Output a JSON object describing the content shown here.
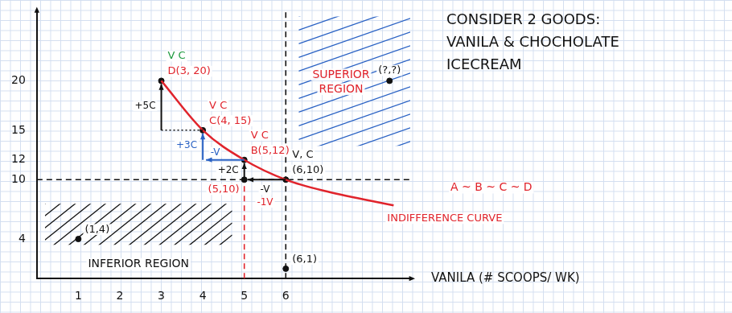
{
  "chart_data": {
    "type": "scatter",
    "title": "CONSIDER 2 GOODS: VANILA & CHOCHOLATE ICECREAM",
    "x_label": "VANILA (# SCOOPS/ WK)",
    "xlim": [
      0,
      9
    ],
    "xticks": [
      1,
      2,
      3,
      4,
      5,
      6
    ],
    "ylim": [
      0,
      27
    ],
    "yticks": [
      4,
      10,
      12,
      15,
      20
    ],
    "grid": false,
    "marker": "circle",
    "series": [
      {
        "name": "INDIFFERENCE CURVE",
        "type": "line",
        "color": "#e0242c",
        "line_style": "solid",
        "x": [
          3,
          4,
          5,
          6,
          7,
          8.6
        ],
        "values": [
          20,
          15,
          12,
          10,
          8.8,
          7.4
        ]
      }
    ],
    "points": [
      {
        "label": "D(3, 20)",
        "x": 3,
        "y": 20,
        "color": "#e0242c",
        "basket": {
          "label": "V C",
          "color": "#1f9a3f"
        }
      },
      {
        "label": "C(4, 15)",
        "x": 4,
        "y": 15,
        "color": "#e0242c",
        "basket": {
          "label": "V C",
          "color": "#e0242c"
        }
      },
      {
        "label": "B(5,12)",
        "x": 5,
        "y": 12,
        "color": "#e0242c",
        "basket": {
          "label": "V C",
          "color": "#e0242c"
        }
      },
      {
        "label": "(6,10)",
        "x": 6,
        "y": 10,
        "color": "#111111",
        "basket": {
          "label": "V, C",
          "color": "#111111"
        }
      },
      {
        "label": "(5,10)",
        "x": 5,
        "y": 10,
        "color": "#e0242c"
      },
      {
        "label": "(1,4)",
        "x": 1,
        "y": 4,
        "color": "#111111"
      },
      {
        "label": "(6,1)",
        "x": 6,
        "y": 1,
        "color": "#111111"
      },
      {
        "label": "(?,?)",
        "x": 8.5,
        "y": 20,
        "color": "#111111"
      }
    ],
    "steps": [
      {
        "from": [
          3,
          15
        ],
        "to": [
          3,
          20
        ],
        "labels": [
          "+5C"
        ],
        "colors": [
          "#111111"
        ]
      },
      {
        "from": [
          4,
          12
        ],
        "to": [
          4,
          15
        ],
        "labels": [
          "+3C"
        ],
        "colors": [
          "#2a62c4"
        ]
      },
      {
        "from": [
          5,
          12
        ],
        "to": [
          4,
          12
        ],
        "labels": [
          "-V"
        ],
        "colors": [
          "#2a62c4"
        ]
      },
      {
        "from": [
          5,
          10
        ],
        "to": [
          5,
          12
        ],
        "labels": [
          "+2C"
        ],
        "colors": [
          "#111111"
        ]
      },
      {
        "from": [
          6,
          10
        ],
        "to": [
          5,
          10
        ],
        "labels": [
          "-V",
          "-1V"
        ],
        "colors": [
          "#111111",
          "#e0242c"
        ]
      }
    ],
    "ref_lines": [
      {
        "x": 6,
        "color": "#111111",
        "line_style": "dashed"
      },
      {
        "y": 10,
        "color": "#111111",
        "line_style": "dashed"
      },
      {
        "x": 5,
        "y_to": 10,
        "color": "#e0242c",
        "line_style": "dashed"
      }
    ],
    "regions": [
      {
        "label": "SUPERIOR REGION",
        "colors": [
          "#e0242c",
          "#2a62c4"
        ]
      },
      {
        "label": "INFERIOR REGION",
        "colors": [
          "#111111",
          "#111111"
        ]
      }
    ],
    "relation": {
      "label": "A ~ B ~ C ~ D",
      "color": "#e0242c"
    }
  }
}
